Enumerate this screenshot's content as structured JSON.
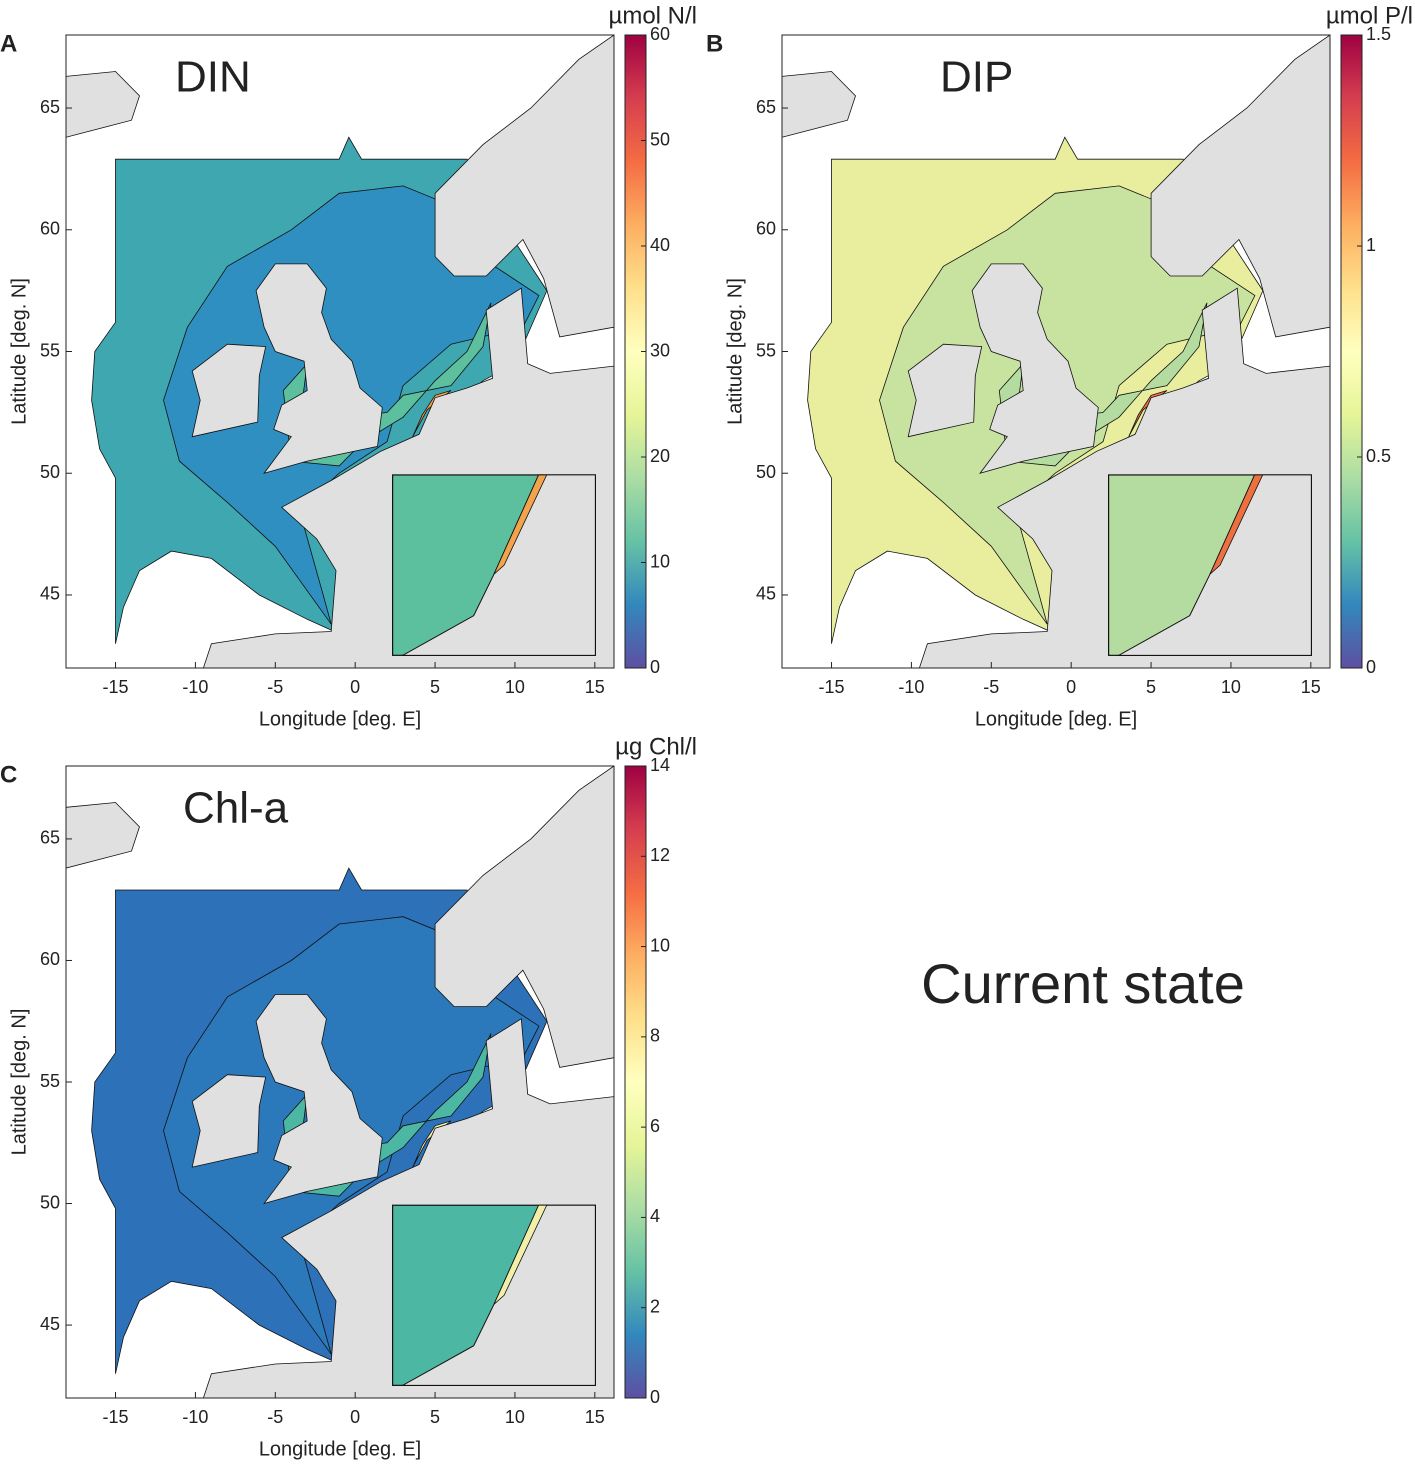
{
  "panels": [
    {
      "letter": "A",
      "title": "DIN",
      "colorbar": {
        "label": "µmol N/l",
        "lim": [
          0,
          60
        ],
        "ticks": [
          0,
          10,
          20,
          30,
          40,
          50,
          60
        ]
      },
      "xlabel": "Longitude [deg. E]",
      "ylabel": "Latitude [deg. N]",
      "xlim": [
        -18.1,
        16.2
      ],
      "ylim": [
        42,
        68
      ],
      "xticks": [
        -15,
        -10,
        -5,
        0,
        5,
        10,
        15
      ],
      "yticks": [
        45,
        50,
        55,
        60,
        65
      ],
      "colors": [
        "#3fa7b0",
        "#2e8fc0",
        "#5cbf9e",
        "#f3a34c"
      ]
    },
    {
      "letter": "B",
      "title": "DIP",
      "colorbar": {
        "label": "µmol P/l",
        "lim": [
          0,
          1.5
        ],
        "ticks": [
          0,
          0.5,
          1,
          1.5
        ]
      },
      "xlabel": "Longitude [deg. E]",
      "ylabel": "Latitude [deg. N]",
      "xlim": [
        -18.1,
        16.2
      ],
      "ylim": [
        42,
        68
      ],
      "xticks": [
        -15,
        -10,
        -5,
        0,
        5,
        10,
        15
      ],
      "yticks": [
        45,
        50,
        55,
        60,
        65
      ],
      "colors": [
        "#e9ee9f",
        "#c8e3a0",
        "#b5dca0",
        "#ee7040"
      ]
    },
    {
      "letter": "C",
      "title": "Chl-a",
      "colorbar": {
        "label": "µg Chl/l",
        "lim": [
          0,
          14
        ],
        "ticks": [
          0,
          2,
          4,
          6,
          8,
          10,
          12,
          14
        ]
      },
      "xlabel": "Longitude [deg. E]",
      "ylabel": "Latitude [deg. N]",
      "xlim": [
        -18.1,
        16.2
      ],
      "ylim": [
        42,
        68
      ],
      "xticks": [
        -15,
        -10,
        -5,
        0,
        5,
        10,
        15
      ],
      "yticks": [
        45,
        50,
        55,
        60,
        65
      ],
      "colors": [
        "#2d71b8",
        "#2b78bb",
        "#4cb7a3",
        "#f2f0a8"
      ]
    }
  ],
  "colormap": [
    "#5e4fa2",
    "#3288bd",
    "#66c2a5",
    "#abdda4",
    "#e6f598",
    "#ffffbf",
    "#fee08b",
    "#fdae61",
    "#f46d43",
    "#d53e4f",
    "#9e0142"
  ],
  "caption": "Current state"
}
